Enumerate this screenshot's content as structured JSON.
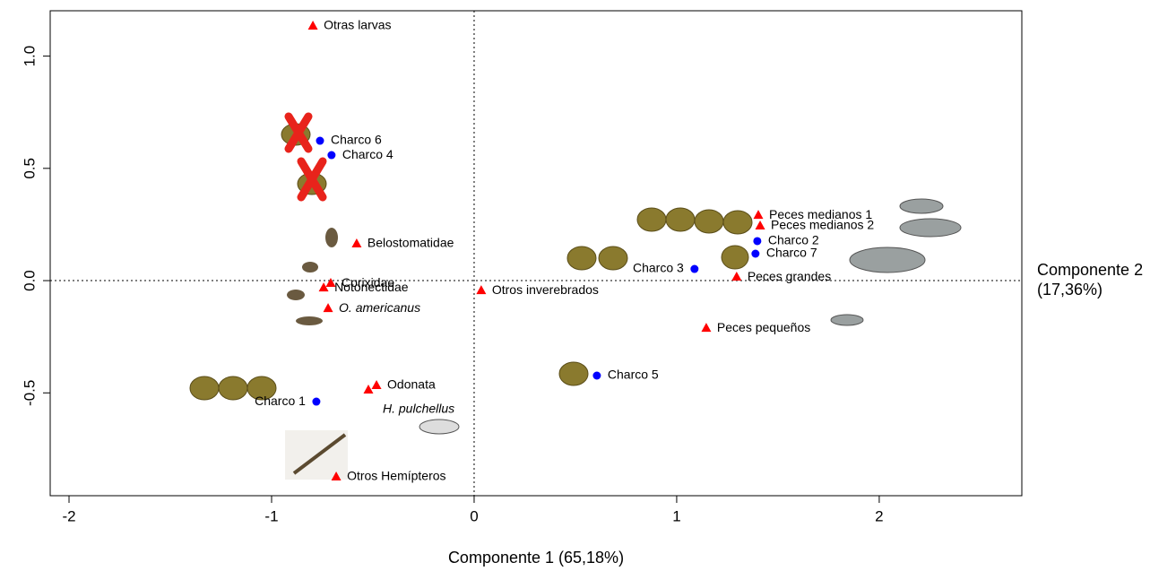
{
  "chart_data": {
    "type": "scatter",
    "x_label": "Componente 1 (65,18%)",
    "y_label": "Componente 2 (17,36%)",
    "xlim": [
      -2.093,
      2.704
    ],
    "ylim": [
      -0.958,
      1.202
    ],
    "xticks": [
      -2,
      -1,
      0,
      1,
      2
    ],
    "yticks": [
      {
        "value": 1,
        "label": "1.0"
      },
      {
        "value": 0.5,
        "label": "0.5"
      },
      {
        "value": 0,
        "label": "0.0"
      },
      -0.5
    ],
    "series": [
      {
        "marker": "circle",
        "color": "#0000ff",
        "labels": [
          "Charco 6",
          "Charco 4",
          "Charco 2",
          "Charco 7",
          "Charco 3",
          "Charco 5",
          "Charco 1"
        ],
        "x": [
          -0.761,
          -0.704,
          1.398,
          1.389,
          1.088,
          0.606,
          -0.779
        ],
        "values": [
          0.623,
          0.559,
          0.176,
          0.12,
          0.052,
          -0.423,
          -0.539
        ]
      },
      {
        "marker": "triangle",
        "color": "#ff0000",
        "labels": [
          "Otras larvas",
          "Belostomatidae",
          "Corixidae",
          "Notonectidae",
          "O. americanus",
          "Otros inverebrados",
          "Odonata",
          "H. pulchellus",
          "Otros Hemípteros",
          "Peces medianos 1",
          "Peces medianos 2",
          "Peces grandes",
          "Peces pequeños"
        ],
        "x": [
          -0.796,
          -0.58,
          -0.708,
          -0.743,
          -0.721,
          0.035,
          -0.482,
          -0.522,
          -0.681,
          1.403,
          1.412,
          1.296,
          1.146
        ],
        "values": [
          1.134,
          0.164,
          -0.012,
          -0.032,
          -0.124,
          -0.044,
          -0.467,
          -0.487,
          -0.874,
          0.291,
          0.244,
          0.016,
          -0.212
        ]
      }
    ]
  }
}
